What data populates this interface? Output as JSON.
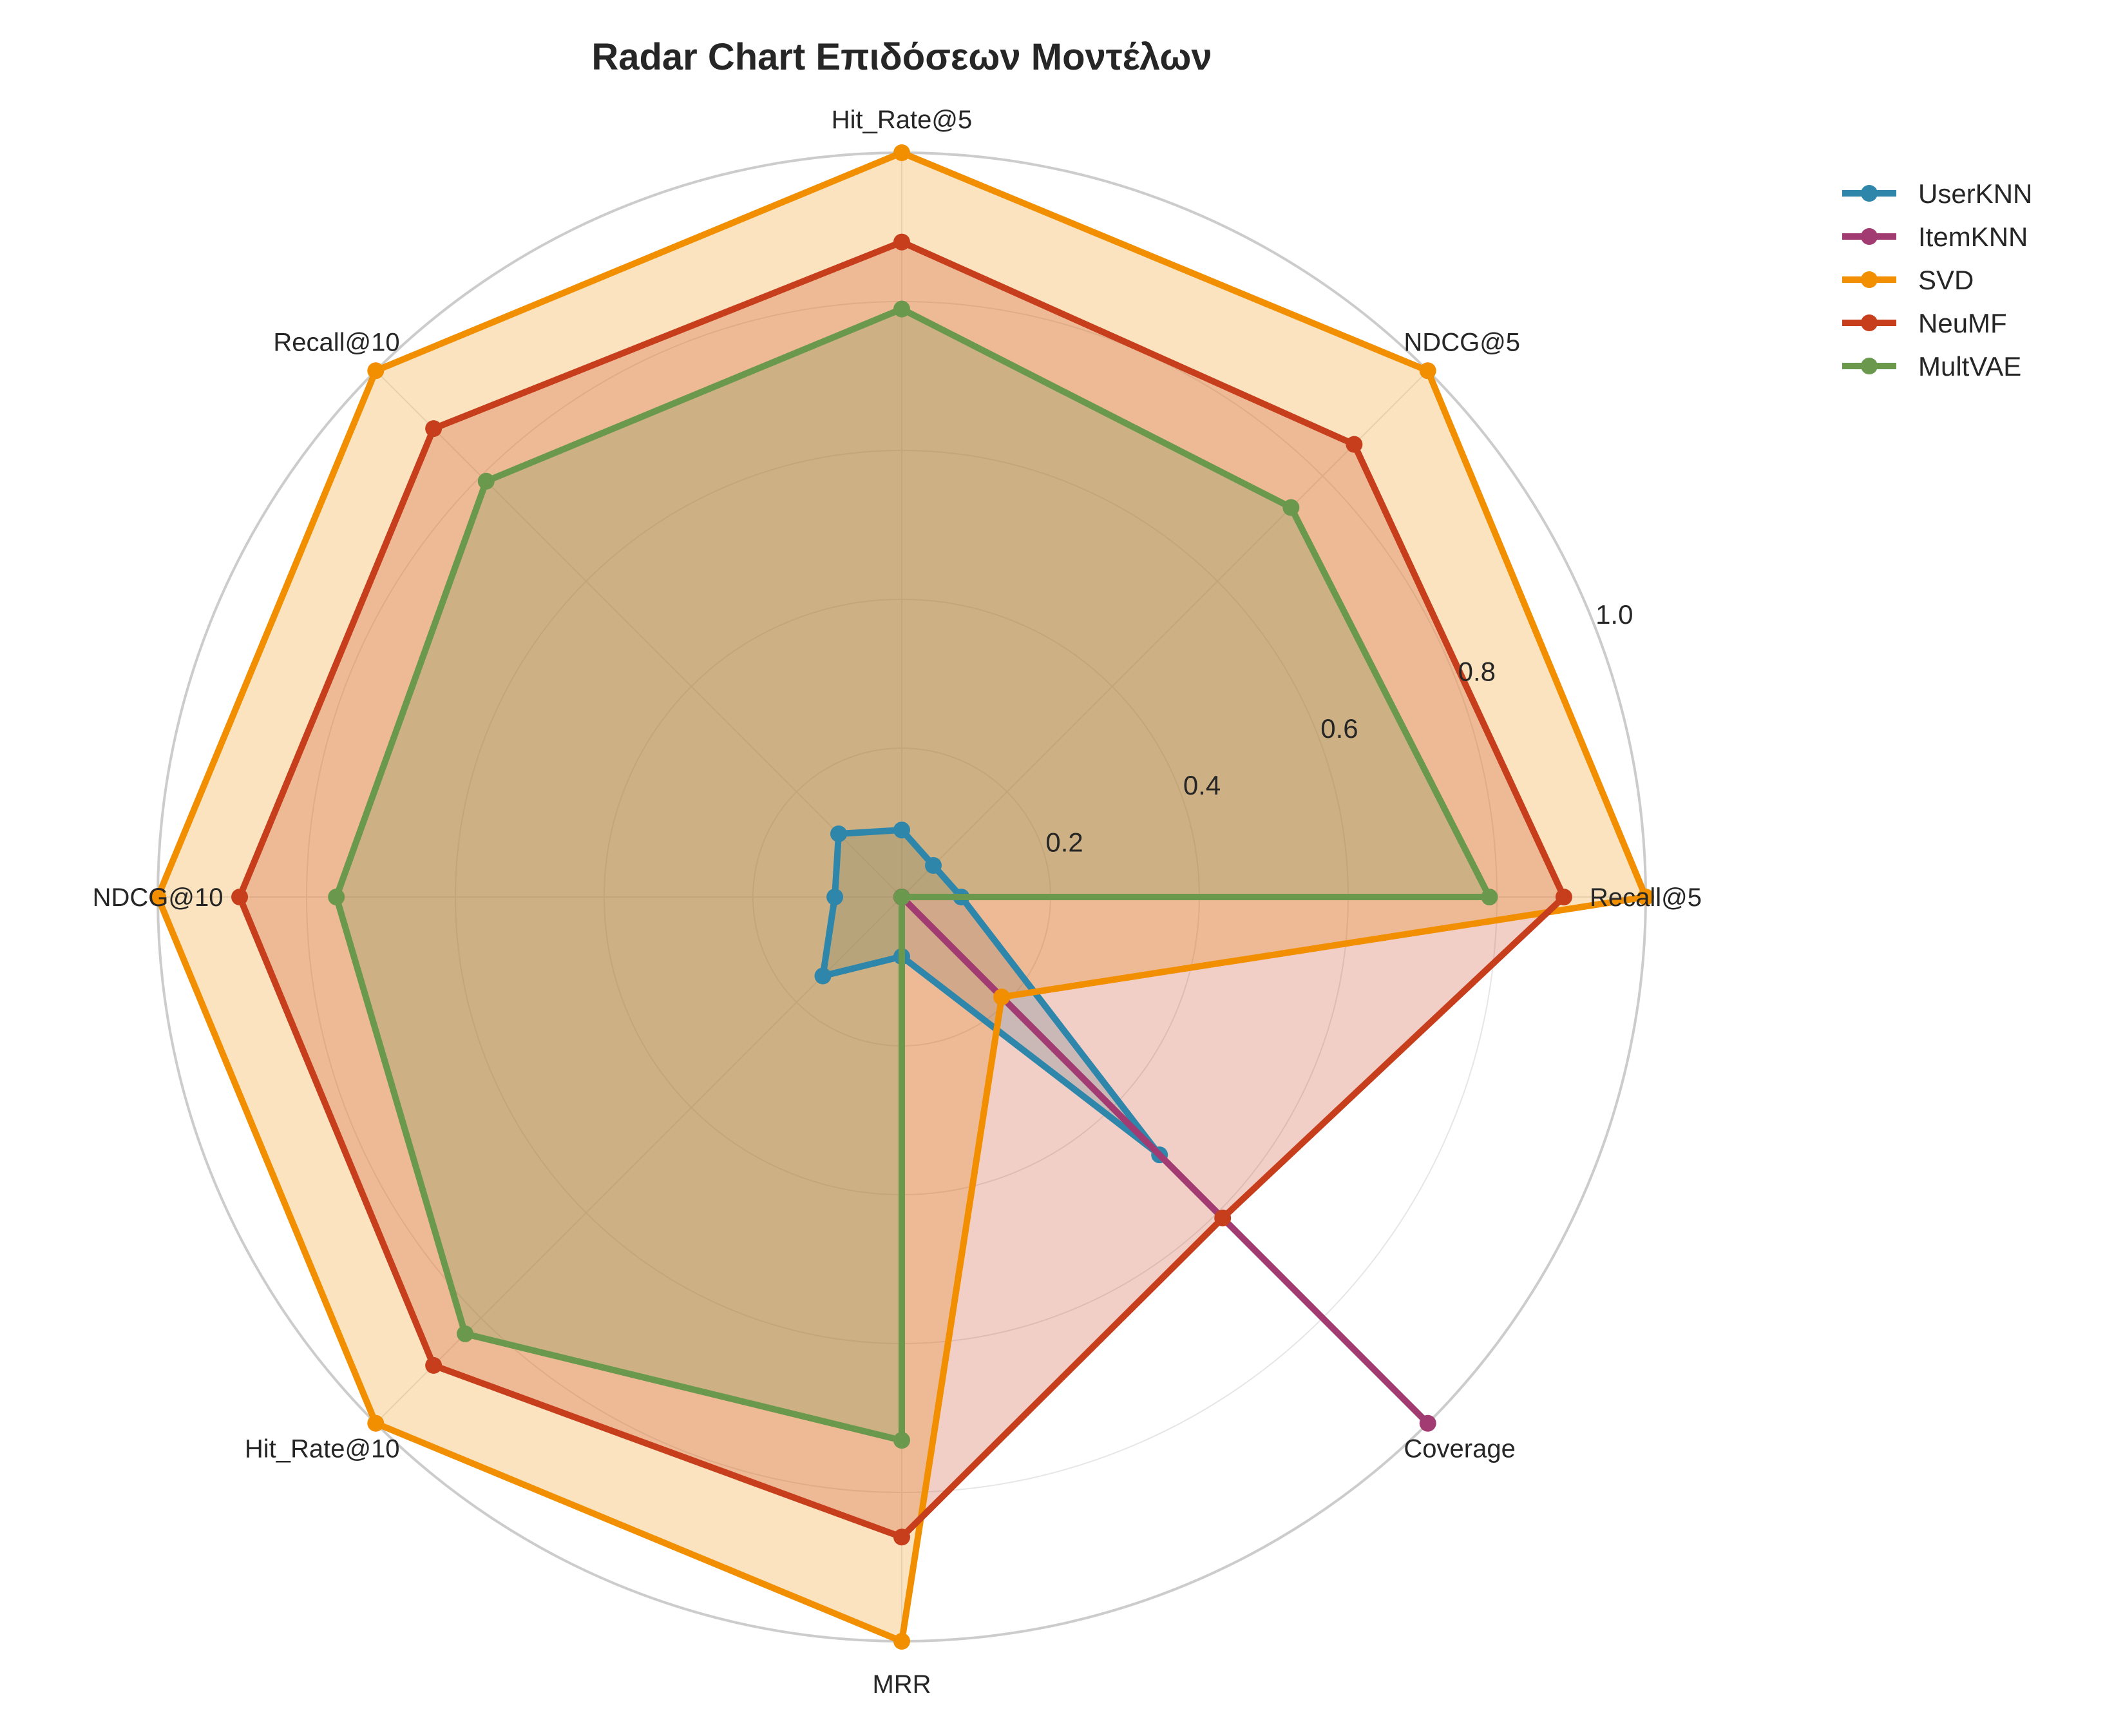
{
  "chart_data": {
    "type": "radar",
    "title": "Radar Chart Επιδόσεων Μοντέλων",
    "axes": [
      "Recall@5",
      "NDCG@5",
      "Hit_Rate@5",
      "Recall@10",
      "NDCG@10",
      "Hit_Rate@10",
      "MRR",
      "Coverage"
    ],
    "rlim": [
      0,
      1.0
    ],
    "rticks": [
      "0.2",
      "0.4",
      "0.6",
      "0.8",
      "1.0"
    ],
    "rtick_values": [
      0.2,
      0.4,
      0.6,
      0.8,
      1.0
    ],
    "grid": true,
    "legend_position": "upper-right-outside",
    "series": [
      {
        "name": "UserKNN",
        "color": "#2e86ab",
        "values": [
          0.08,
          0.06,
          0.09,
          0.12,
          0.09,
          0.15,
          0.08,
          0.49
        ]
      },
      {
        "name": "ItemKNN",
        "color": "#a23b72",
        "values": [
          0.0,
          0.0,
          0.0,
          0.0,
          0.0,
          0.0,
          0.0,
          1.0
        ]
      },
      {
        "name": "SVD",
        "color": "#f18f01",
        "values": [
          1.0,
          1.0,
          1.0,
          1.0,
          1.0,
          1.0,
          1.0,
          0.19
        ]
      },
      {
        "name": "NeuMF",
        "color": "#c73e1d",
        "values": [
          0.89,
          0.86,
          0.88,
          0.89,
          0.89,
          0.89,
          0.86,
          0.61
        ]
      },
      {
        "name": "MultVAE",
        "color": "#6a994e",
        "values": [
          0.79,
          0.74,
          0.79,
          0.79,
          0.76,
          0.83,
          0.73,
          0.0
        ]
      }
    ]
  }
}
